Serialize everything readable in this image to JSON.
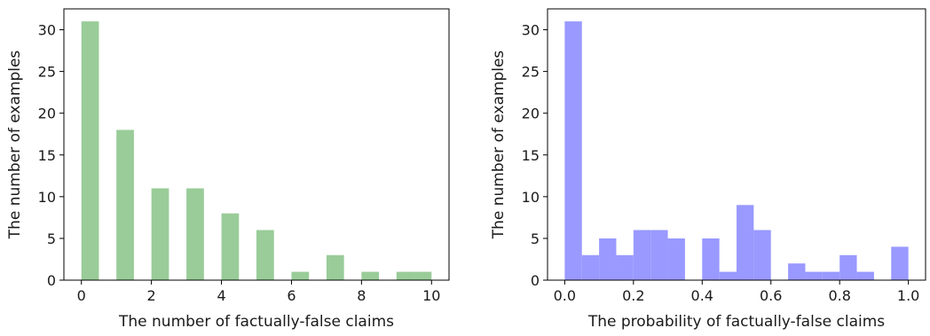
{
  "chart_data": [
    {
      "type": "bar",
      "xlabel": "The number of factually-false claims",
      "ylabel": "The number of examples",
      "xlim": [
        -0.5,
        10.5
      ],
      "ylim": [
        0,
        32.5
      ],
      "xticks": [
        0,
        2,
        4,
        6,
        8,
        10
      ],
      "xtick_labels": [
        "0",
        "2",
        "4",
        "6",
        "8",
        "10"
      ],
      "yticks": [
        0,
        5,
        10,
        15,
        20,
        25,
        30
      ],
      "ytick_labels": [
        "0",
        "5",
        "10",
        "15",
        "20",
        "25",
        "30"
      ],
      "color": "#99cc99",
      "bins": [
        {
          "x0": 0.0,
          "x1": 0.5,
          "value": 31
        },
        {
          "x0": 1.0,
          "x1": 1.5,
          "value": 18
        },
        {
          "x0": 2.0,
          "x1": 2.5,
          "value": 11
        },
        {
          "x0": 3.0,
          "x1": 3.5,
          "value": 11
        },
        {
          "x0": 4.0,
          "x1": 4.5,
          "value": 8
        },
        {
          "x0": 5.0,
          "x1": 5.5,
          "value": 6
        },
        {
          "x0": 6.0,
          "x1": 6.5,
          "value": 1
        },
        {
          "x0": 7.0,
          "x1": 7.5,
          "value": 3
        },
        {
          "x0": 8.0,
          "x1": 8.5,
          "value": 1
        },
        {
          "x0": 9.0,
          "x1": 9.5,
          "value": 1
        },
        {
          "x0": 9.5,
          "x1": 10.0,
          "value": 1
        }
      ]
    },
    {
      "type": "bar",
      "xlabel": "The probability of factually-false claims",
      "ylabel": "The number of examples",
      "xlim": [
        -0.05,
        1.05
      ],
      "ylim": [
        0,
        32.5
      ],
      "xticks": [
        0,
        0.2,
        0.4,
        0.6,
        0.8,
        1.0
      ],
      "xtick_labels": [
        "0.0",
        "0.2",
        "0.4",
        "0.6",
        "0.8",
        "1.0"
      ],
      "yticks": [
        0,
        5,
        10,
        15,
        20,
        25,
        30
      ],
      "ytick_labels": [
        "0",
        "5",
        "10",
        "15",
        "20",
        "25",
        "30"
      ],
      "color": "#9999ff",
      "bins": [
        {
          "x0": 0.0,
          "x1": 0.05,
          "value": 31
        },
        {
          "x0": 0.05,
          "x1": 0.1,
          "value": 3
        },
        {
          "x0": 0.1,
          "x1": 0.15,
          "value": 5
        },
        {
          "x0": 0.15,
          "x1": 0.2,
          "value": 3
        },
        {
          "x0": 0.2,
          "x1": 0.25,
          "value": 6
        },
        {
          "x0": 0.25,
          "x1": 0.3,
          "value": 6
        },
        {
          "x0": 0.3,
          "x1": 0.35,
          "value": 5
        },
        {
          "x0": 0.35,
          "x1": 0.4,
          "value": 0
        },
        {
          "x0": 0.4,
          "x1": 0.45,
          "value": 5
        },
        {
          "x0": 0.45,
          "x1": 0.5,
          "value": 1
        },
        {
          "x0": 0.5,
          "x1": 0.55,
          "value": 9
        },
        {
          "x0": 0.55,
          "x1": 0.6,
          "value": 6
        },
        {
          "x0": 0.6,
          "x1": 0.65,
          "value": 0
        },
        {
          "x0": 0.65,
          "x1": 0.7,
          "value": 2
        },
        {
          "x0": 0.7,
          "x1": 0.75,
          "value": 1
        },
        {
          "x0": 0.75,
          "x1": 0.8,
          "value": 1
        },
        {
          "x0": 0.8,
          "x1": 0.85,
          "value": 3
        },
        {
          "x0": 0.85,
          "x1": 0.9,
          "value": 1
        },
        {
          "x0": 0.9,
          "x1": 0.95,
          "value": 0
        },
        {
          "x0": 0.95,
          "x1": 1.0,
          "value": 4
        }
      ]
    }
  ]
}
